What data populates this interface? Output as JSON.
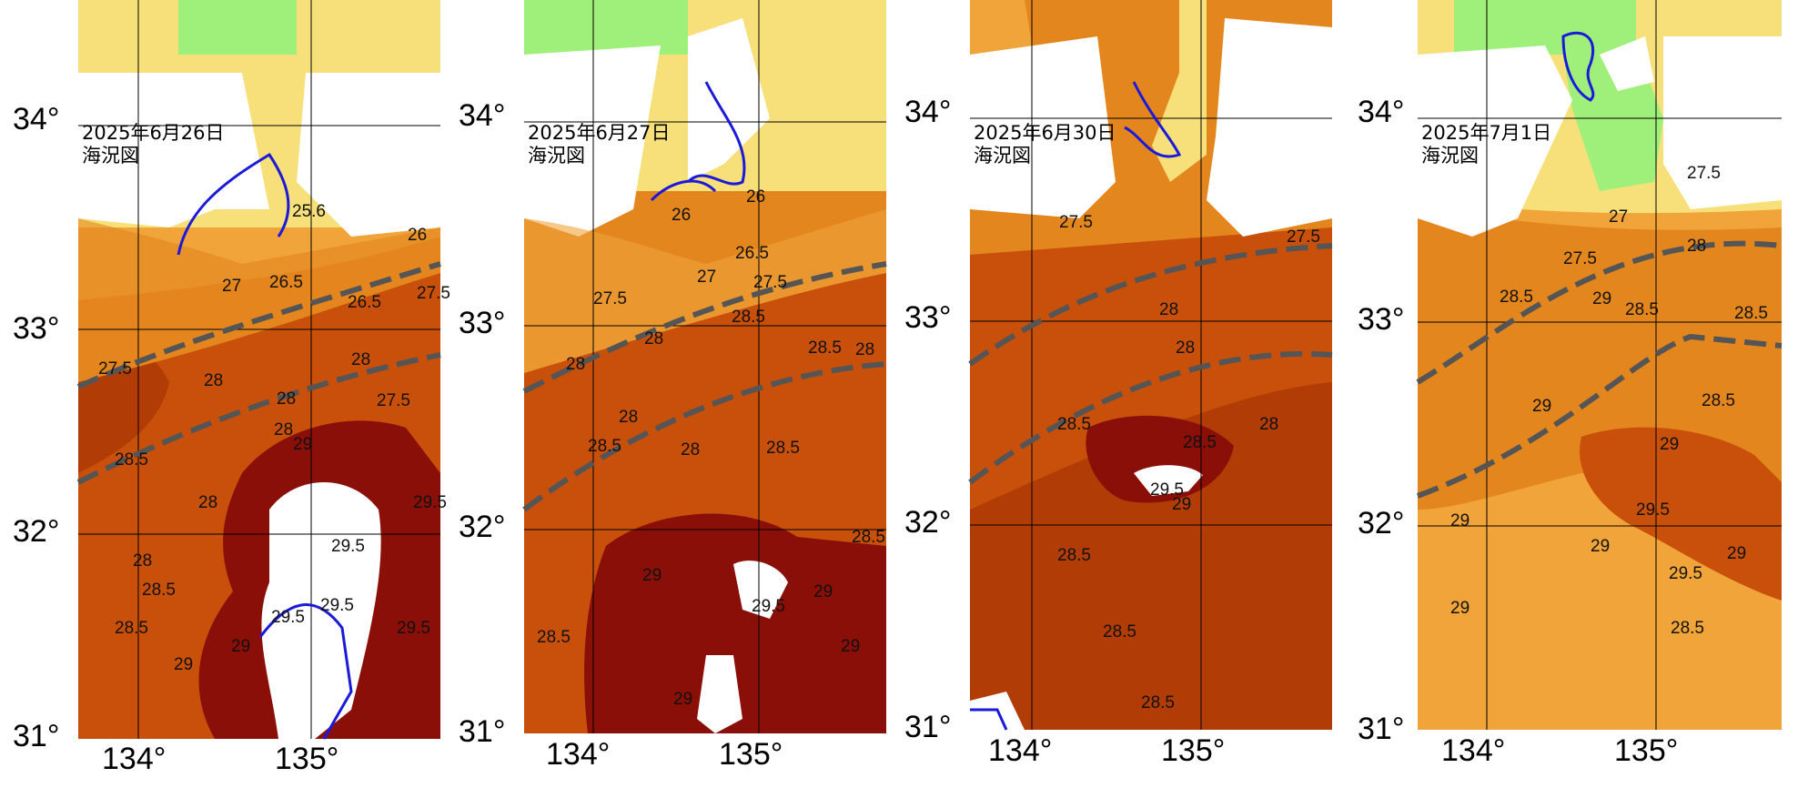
{
  "figure": {
    "panels": [
      {
        "id": "p1",
        "date": "2025年6月26日",
        "subtitle": "海況図",
        "lat_labels": [
          "34°",
          "33°",
          "32°",
          "31°"
        ],
        "lon_labels": [
          "134°",
          "135°"
        ],
        "contour_labels": [
          "25.6",
          "26",
          "26.5",
          "27",
          "27.5",
          "27.5",
          "27.5",
          "28",
          "28",
          "28",
          "28",
          "28",
          "28",
          "28.5",
          "28.5",
          "28.5",
          "29",
          "29",
          "29",
          "29.5",
          "29.5",
          "29.5",
          "29.5",
          "29.5",
          "26.5"
        ]
      },
      {
        "id": "p2",
        "date": "2025年6月27日",
        "subtitle": "海況図",
        "lat_labels": [
          "34°",
          "33°",
          "32°",
          "31°"
        ],
        "lon_labels": [
          "134°",
          "135°"
        ],
        "contour_labels": [
          "26",
          "26",
          "26.5",
          "27",
          "27.5",
          "27.5",
          "28",
          "28",
          "28",
          "28",
          "28",
          "28.5",
          "28.5",
          "28.5",
          "28.5",
          "28.5",
          "28.5",
          "29",
          "29",
          "29",
          "29",
          "29.5"
        ]
      },
      {
        "id": "p3",
        "date": "2025年6月30日",
        "subtitle": "海況図",
        "lat_labels": [
          "34°",
          "33°",
          "32°",
          "31°"
        ],
        "lon_labels": [
          "134°",
          "135°"
        ],
        "contour_labels": [
          "27.5",
          "27.5",
          "28",
          "28",
          "28",
          "28.5",
          "28.5",
          "28.5",
          "28.5",
          "28.5",
          "29",
          "29.5"
        ]
      },
      {
        "id": "p4",
        "date": "2025年7月1日",
        "subtitle": "海況図",
        "lat_labels": [
          "34°",
          "33°",
          "32°",
          "31°"
        ],
        "lon_labels": [
          "134°",
          "135°"
        ],
        "contour_labels": [
          "27",
          "27.5",
          "27.5",
          "28",
          "28.5",
          "28.5",
          "28.5",
          "28.5",
          "28.5",
          "29",
          "29",
          "29",
          "29",
          "29",
          "29",
          "29.5",
          "29.5",
          "29"
        ]
      }
    ],
    "colors": {
      "land": "#ffffff",
      "sst_24": "#9ff07a",
      "sst_25": "#c8ec78",
      "sst_26": "#f7e07a",
      "sst_27": "#f2c15a",
      "sst_27_5": "#f0a43a",
      "sst_28": "#e4861e",
      "sst_28_5": "#c8500a",
      "sst_29": "#b23c06",
      "sst_29_5": "#8a0f08",
      "kuroshio_axis": "#555555",
      "cold_contour": "#1a1ad8"
    }
  }
}
